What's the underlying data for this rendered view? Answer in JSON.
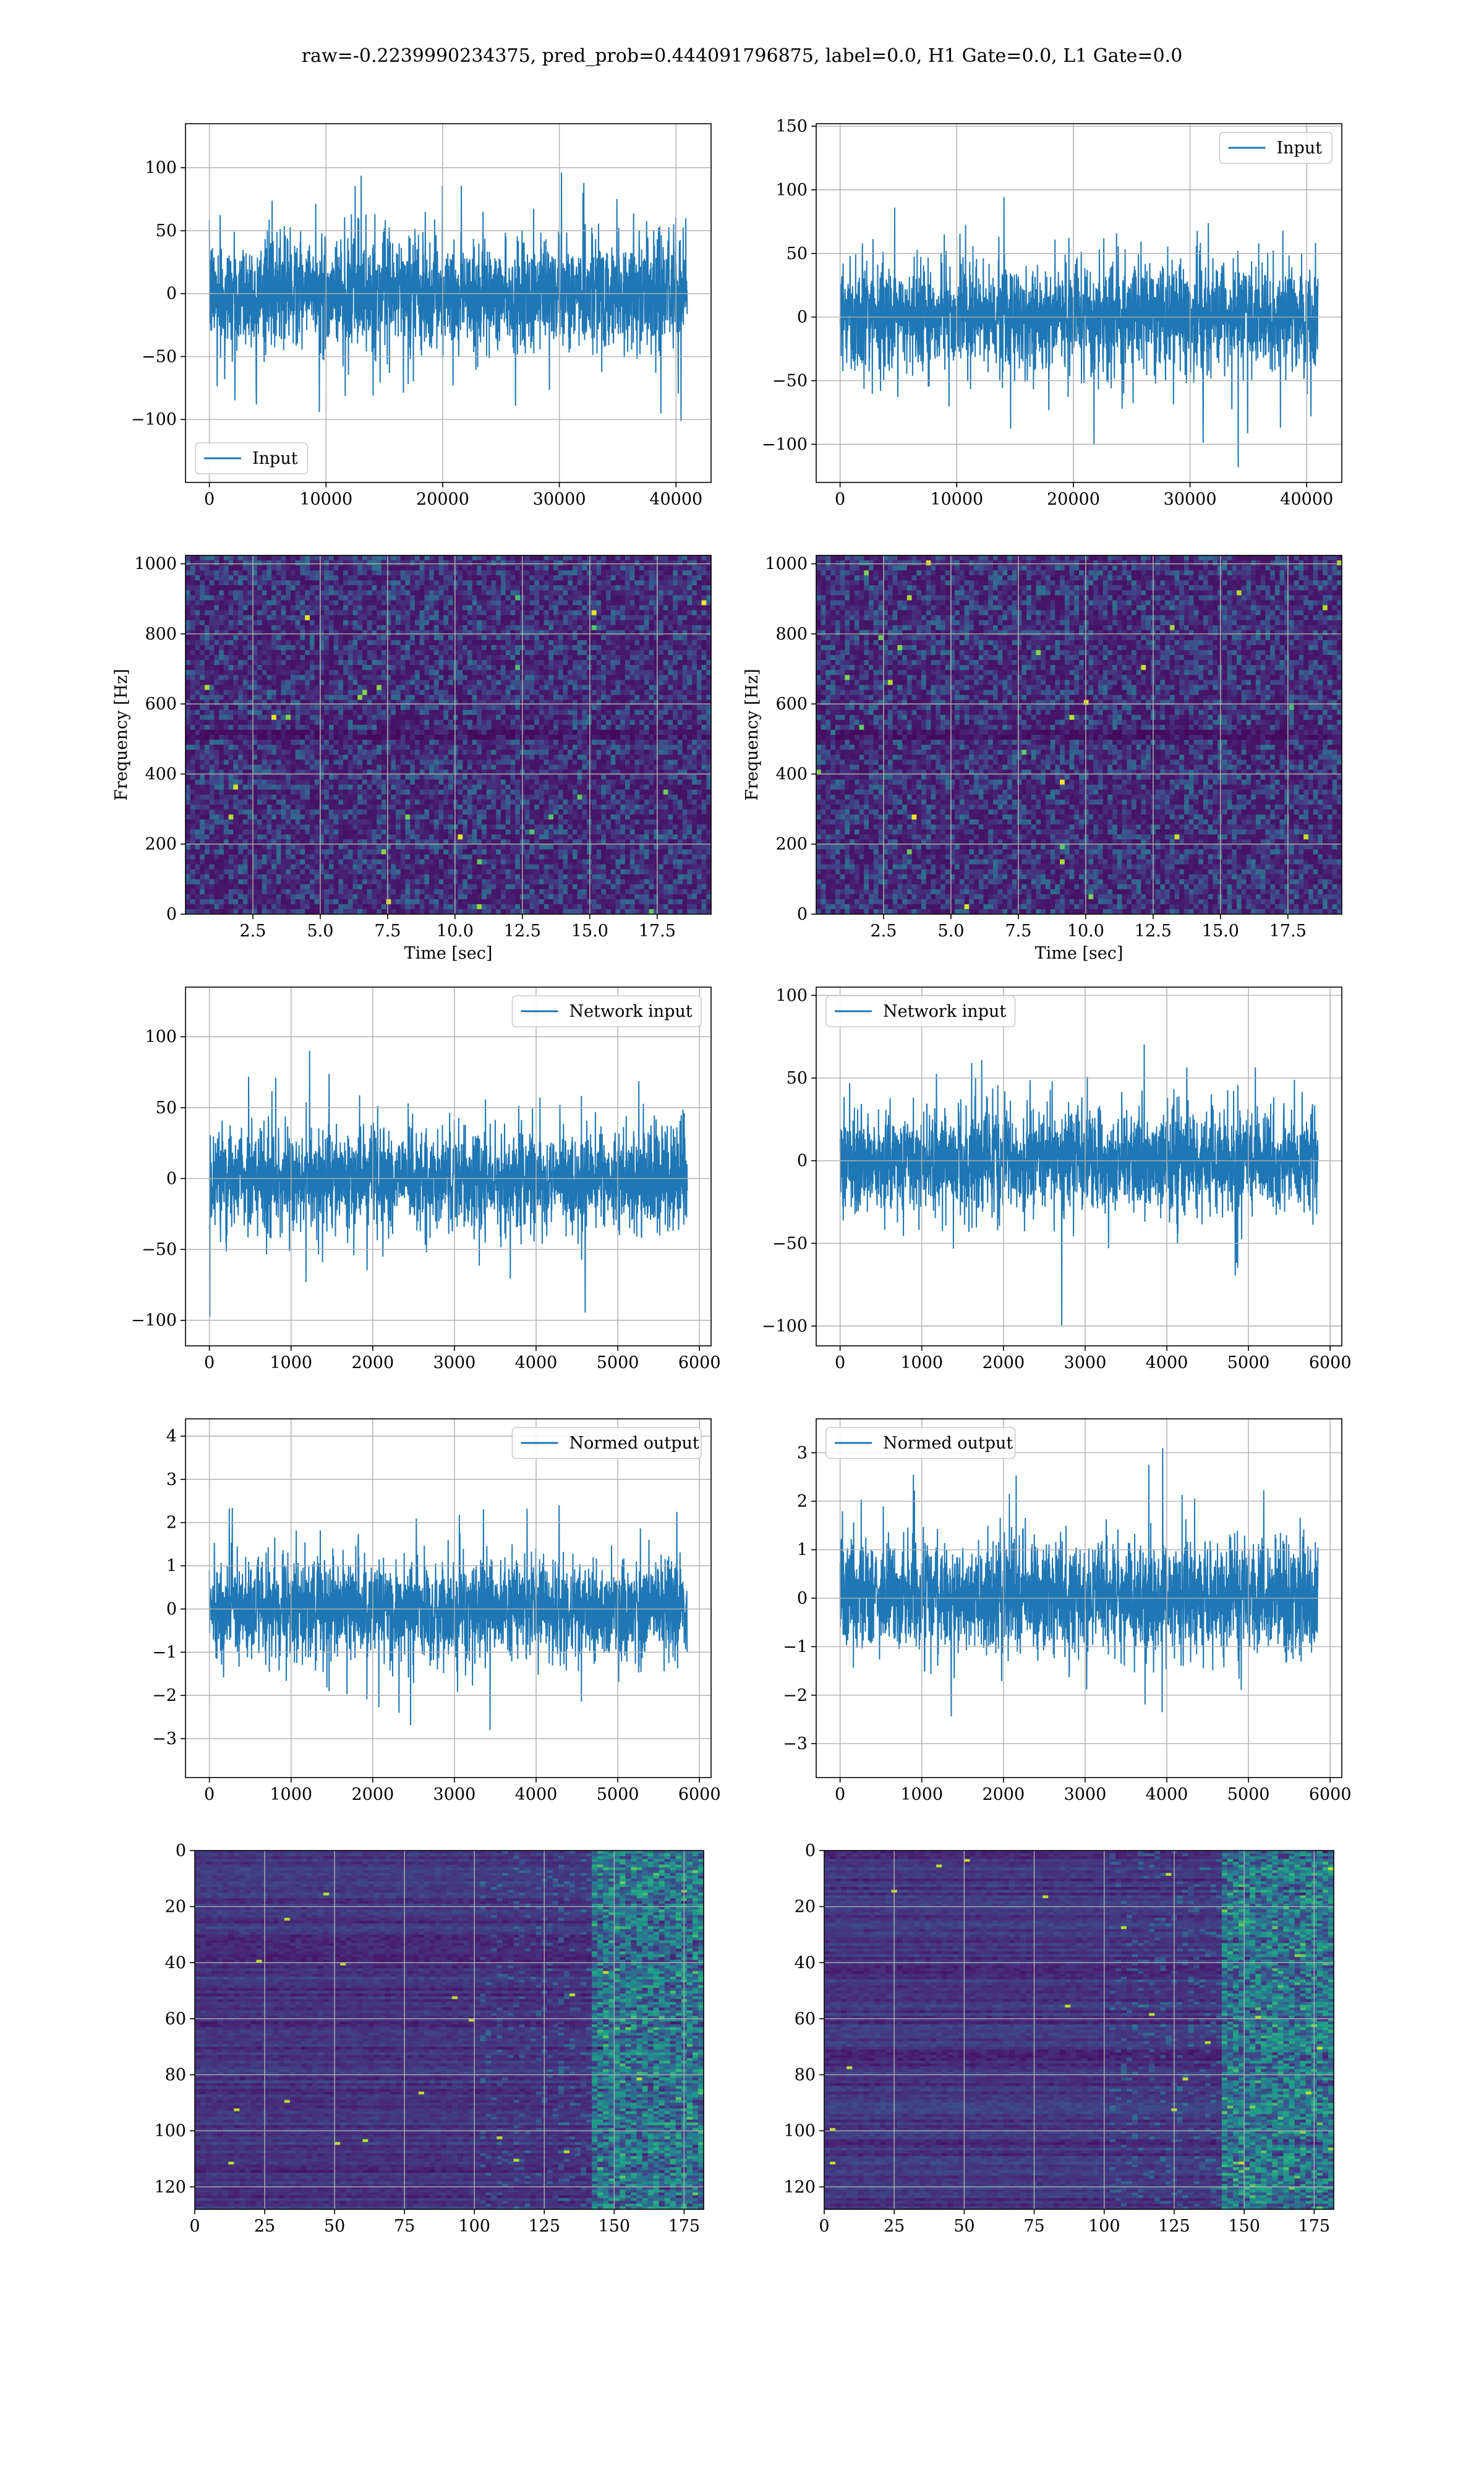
{
  "figure": {
    "title": "raw=-0.2239990234375, pred_prob=0.444091796875, label=0.0, H1 Gate=0.0, L1 Gate=0.0"
  },
  "colors": {
    "line": "#1f77b4",
    "grid": "#b0b0b0",
    "axis": "#000000",
    "viridis": [
      "#440154",
      "#482878",
      "#3e4989",
      "#31688e",
      "#26828e",
      "#1f9e89",
      "#35b779",
      "#6ece58",
      "#b5de2b",
      "#fde725"
    ]
  },
  "chart_data": [
    {
      "id": "h1_input",
      "type": "line",
      "series": [
        {
          "name": "Input"
        }
      ],
      "x_range": [
        0,
        40960
      ],
      "ylim": [
        -150,
        135
      ],
      "xticks": [
        0,
        10000,
        20000,
        30000,
        40000
      ],
      "yticks": [
        -100,
        -50,
        0,
        50,
        100
      ],
      "legend": "lower-left",
      "grid": true,
      "envelope_sigma": 21
    },
    {
      "id": "l1_input",
      "type": "line",
      "series": [
        {
          "name": "Input"
        }
      ],
      "x_range": [
        0,
        40960
      ],
      "ylim": [
        -130,
        152
      ],
      "xticks": [
        0,
        10000,
        20000,
        30000,
        40000
      ],
      "yticks": [
        -100,
        -50,
        0,
        50,
        100,
        150
      ],
      "legend": "upper-right",
      "grid": true,
      "envelope_sigma": 20
    },
    {
      "id": "h1_spectrogram",
      "type": "heatmap",
      "xlim": [
        0,
        19.5
      ],
      "ylim": [
        0,
        1024
      ],
      "xticks": [
        2.5,
        5.0,
        7.5,
        10.0,
        12.5,
        15.0,
        17.5
      ],
      "yticks": [
        0,
        200,
        400,
        600,
        800,
        1000
      ],
      "xlabel": "Time [sec]",
      "ylabel": "Frequency [Hz]",
      "grid": true
    },
    {
      "id": "l1_spectrogram",
      "type": "heatmap",
      "xlim": [
        0,
        19.5
      ],
      "ylim": [
        0,
        1024
      ],
      "xticks": [
        2.5,
        5.0,
        7.5,
        10.0,
        12.5,
        15.0,
        17.5
      ],
      "yticks": [
        0,
        200,
        400,
        600,
        800,
        1000
      ],
      "xlabel": "Time [sec]",
      "ylabel": "Frequency [Hz]",
      "grid": true
    },
    {
      "id": "h1_network_input",
      "type": "line",
      "series": [
        {
          "name": "Network input"
        }
      ],
      "x_range": [
        0,
        5850
      ],
      "ylim": [
        -118,
        135
      ],
      "xticks": [
        0,
        1000,
        2000,
        3000,
        4000,
        5000,
        6000
      ],
      "yticks": [
        -100,
        -50,
        0,
        50,
        100
      ],
      "legend": "upper-right",
      "grid": true,
      "envelope_sigma": 17
    },
    {
      "id": "l1_network_input",
      "type": "line",
      "series": [
        {
          "name": "Network input"
        }
      ],
      "x_range": [
        0,
        5850
      ],
      "ylim": [
        -112,
        105
      ],
      "xticks": [
        0,
        1000,
        2000,
        3000,
        4000,
        5000,
        6000
      ],
      "yticks": [
        -100,
        -50,
        0,
        50,
        100
      ],
      "legend": "upper-left",
      "grid": true,
      "envelope_sigma": 15
    },
    {
      "id": "h1_normed_output",
      "type": "line",
      "series": [
        {
          "name": "Normed output"
        }
      ],
      "x_range": [
        0,
        5850
      ],
      "ylim": [
        -3.9,
        4.4
      ],
      "xticks": [
        0,
        1000,
        2000,
        3000,
        4000,
        5000,
        6000
      ],
      "yticks": [
        -3,
        -2,
        -1,
        0,
        1,
        2,
        3,
        4
      ],
      "legend": "upper-right",
      "grid": true,
      "envelope_sigma": 0.55
    },
    {
      "id": "l1_normed_output",
      "type": "line",
      "series": [
        {
          "name": "Normed output"
        }
      ],
      "x_range": [
        0,
        5850
      ],
      "ylim": [
        -3.7,
        3.7
      ],
      "xticks": [
        0,
        1000,
        2000,
        3000,
        4000,
        5000,
        6000
      ],
      "yticks": [
        -3,
        -2,
        -1,
        0,
        1,
        2,
        3
      ],
      "legend": "upper-left",
      "grid": true,
      "envelope_sigma": 0.55
    },
    {
      "id": "h1_features",
      "type": "heatmap",
      "shape": [
        128,
        182
      ],
      "xlim": [
        0,
        182
      ],
      "ylim": [
        128,
        0
      ],
      "xticks": [
        0,
        25,
        50,
        75,
        100,
        125,
        150,
        175
      ],
      "yticks": [
        0,
        20,
        40,
        60,
        80,
        100,
        120
      ],
      "grid": true
    },
    {
      "id": "l1_features",
      "type": "heatmap",
      "shape": [
        128,
        182
      ],
      "xlim": [
        0,
        182
      ],
      "ylim": [
        128,
        0
      ],
      "xticks": [
        0,
        25,
        50,
        75,
        100,
        125,
        150,
        175
      ],
      "yticks": [
        0,
        20,
        40,
        60,
        80,
        100,
        120
      ],
      "grid": true
    }
  ]
}
